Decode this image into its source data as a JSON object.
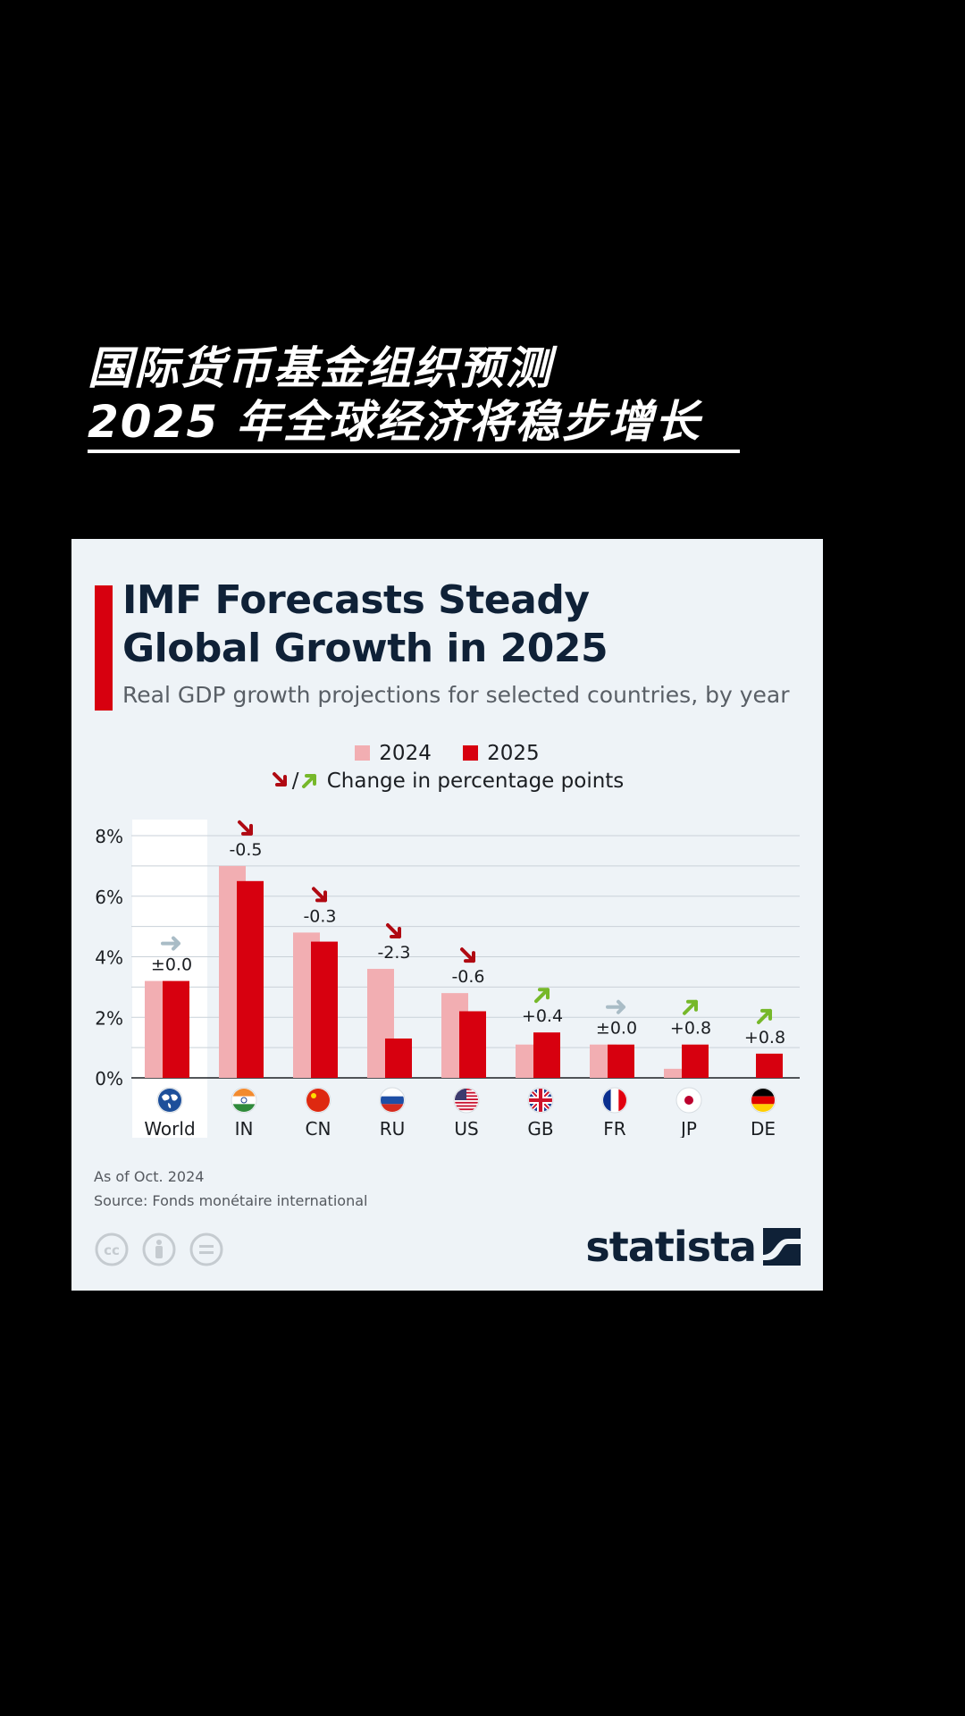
{
  "headline": {
    "line1": "国际货币基金组织预测",
    "line2": "2025 年全球经济将稳步增长"
  },
  "card": {
    "title_line1": "IMF Forecasts Steady",
    "title_line2": "Global Growth in 2025",
    "subtitle": "Real GDP growth projections for selected countries, by year",
    "legend": {
      "series_2024": "2024",
      "series_2025": "2025",
      "slash": "/",
      "change_label": "Change in percentage points"
    },
    "as_of": "As of Oct. 2024",
    "source": "Source: Fonds monétaire international",
    "brand": "statista"
  },
  "colors": {
    "c2024": "#f2aeb2",
    "c2025": "#d7000f",
    "down_arrow": "#b00912",
    "up_arrow": "#76b82a",
    "flat_arrow": "#a9bcc6"
  },
  "chart_data": {
    "type": "bar",
    "title": "IMF Forecasts Steady Global Growth in 2025",
    "subtitle": "Real GDP growth projections for selected countries, by year",
    "xlabel": "",
    "ylabel": "",
    "ylim": [
      0,
      8
    ],
    "yticks": [
      0,
      2,
      4,
      6,
      8
    ],
    "ytick_labels": [
      "0%",
      "2%",
      "4%",
      "6%",
      "8%"
    ],
    "grid": true,
    "categories": [
      "World",
      "IN",
      "CN",
      "RU",
      "US",
      "GB",
      "FR",
      "JP",
      "DE"
    ],
    "series": [
      {
        "name": "2024",
        "values": [
          3.2,
          7.0,
          4.8,
          3.6,
          2.8,
          1.1,
          1.1,
          0.3,
          0.0
        ]
      },
      {
        "name": "2025",
        "values": [
          3.2,
          6.5,
          4.5,
          1.3,
          2.2,
          1.5,
          1.1,
          1.1,
          0.8
        ]
      }
    ],
    "change_labels": [
      "±0.0",
      "-0.5",
      "-0.3",
      "-2.3",
      "-0.6",
      "+0.4",
      "±0.0",
      "+0.8",
      "+0.8"
    ],
    "change_direction": [
      "flat",
      "down",
      "down",
      "down",
      "down",
      "up",
      "flat",
      "up",
      "up"
    ],
    "flags": [
      "globe-icon",
      "india-flag-icon",
      "china-flag-icon",
      "russia-flag-icon",
      "usa-flag-icon",
      "uk-flag-icon",
      "france-flag-icon",
      "japan-flag-icon",
      "germany-flag-icon"
    ]
  }
}
